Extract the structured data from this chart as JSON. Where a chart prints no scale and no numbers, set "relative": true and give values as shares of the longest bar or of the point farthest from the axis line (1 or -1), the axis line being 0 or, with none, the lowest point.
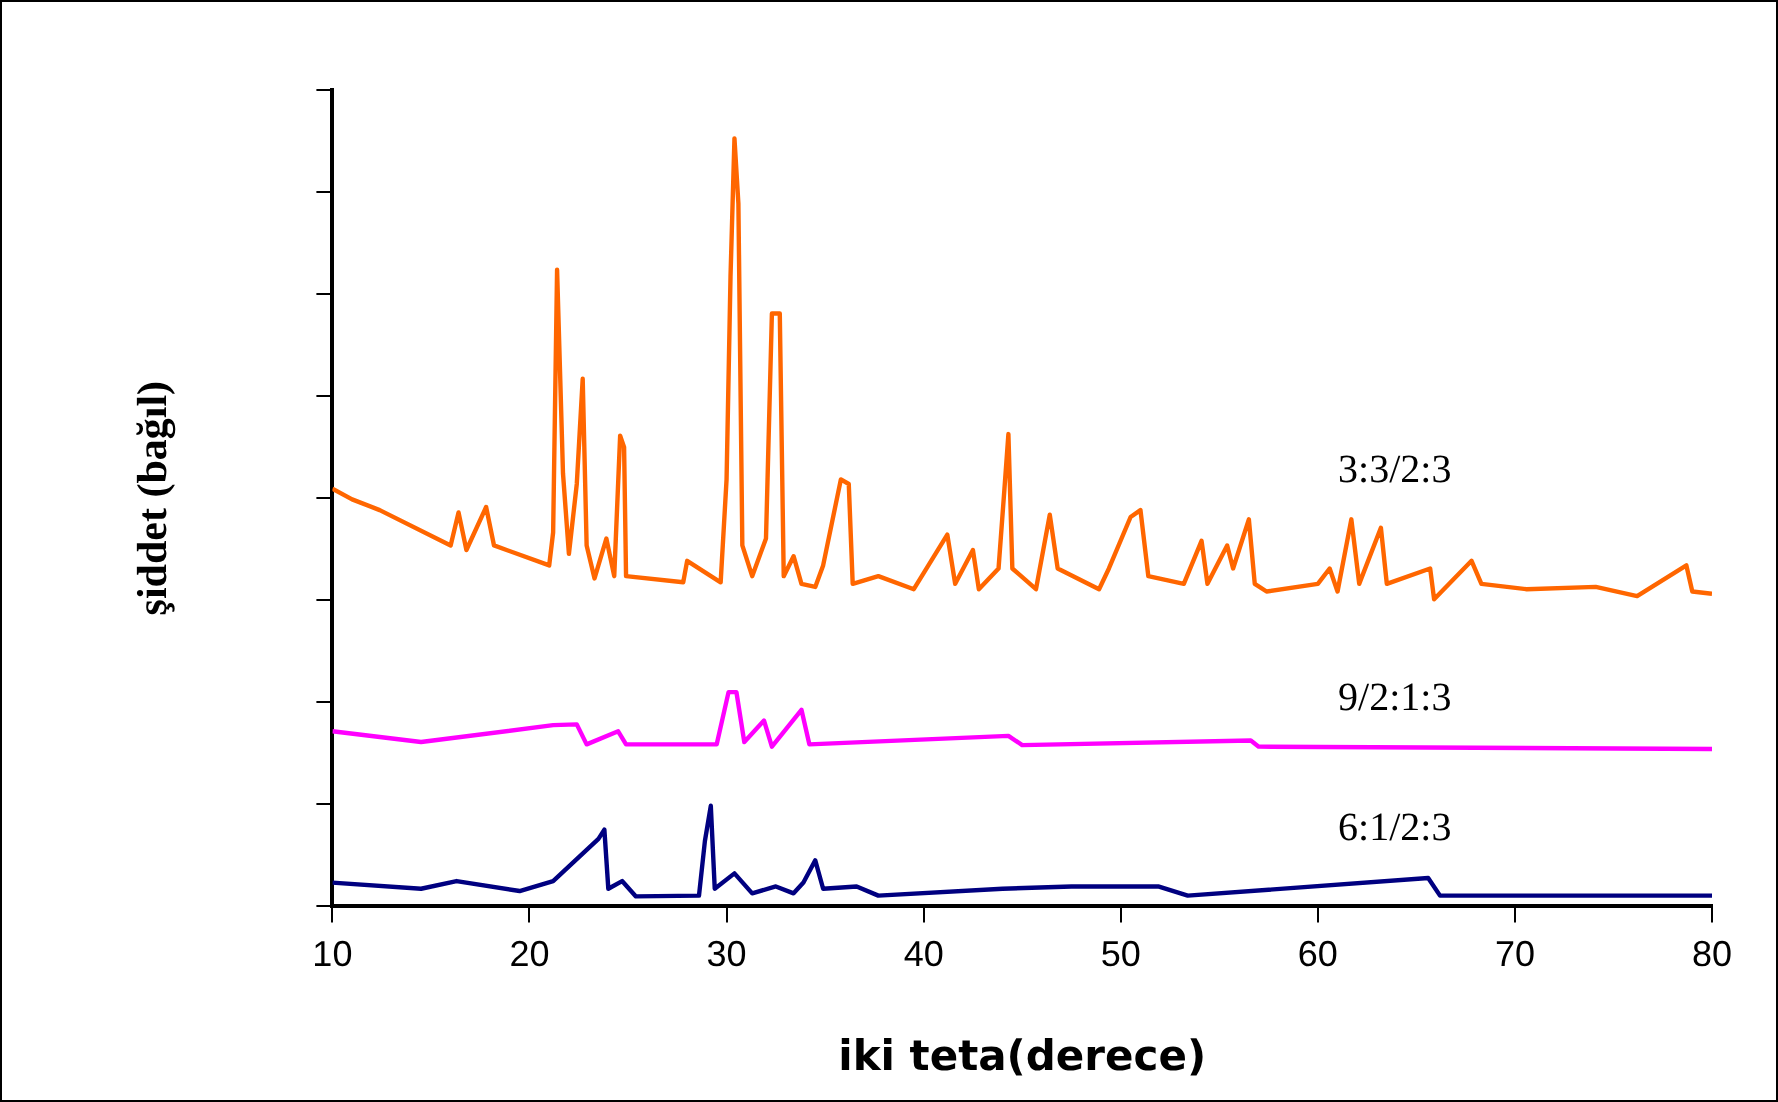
{
  "chart_data": {
    "type": "line",
    "xlabel": "iki teta(derece)",
    "ylabel": "şiddet (bağıl)",
    "relative": true,
    "xlim": [
      10,
      80
    ],
    "xticks": [
      10,
      20,
      30,
      40,
      50,
      60,
      70,
      80
    ],
    "tick_labels": "x",
    "grid": false,
    "legend": false,
    "marker": "none",
    "line_style": "solid",
    "series": [
      {
        "name": "3:3/2:3",
        "color": "#ff6600",
        "x": [
          10,
          11,
          12.4,
          16,
          16.4,
          16.8,
          17.8,
          18.2,
          21,
          21.2,
          21.4,
          21.7,
          22,
          22.4,
          22.7,
          22.9,
          23.3,
          23.9,
          24.3,
          24.6,
          24.8,
          24.9,
          27.8,
          28,
          29.7,
          30,
          30.2,
          30.4,
          30.6,
          30.8,
          31.3,
          32,
          32.3,
          32.7,
          32.9,
          33.4,
          33.8,
          34.5,
          34.9,
          35.8,
          36.2,
          36.4,
          37.7,
          39.5,
          41.2,
          41.6,
          42.5,
          42.8,
          43.8,
          44.1,
          44.3,
          44.5,
          45.7,
          46.4,
          46.8,
          48.9,
          49.4,
          50.5,
          51,
          51.4,
          53.2,
          54.1,
          54.4,
          55.4,
          55.7,
          56.5,
          56.8,
          57.4,
          60,
          60.6,
          61,
          61.7,
          62.1,
          63.2,
          63.5,
          65.7,
          65.9,
          67.8,
          68.3,
          70.6,
          74.1,
          76.2,
          78.7,
          79,
          80
        ],
        "values": [
          0.544,
          0.53,
          0.516,
          0.47,
          0.513,
          0.464,
          0.52,
          0.47,
          0.444,
          0.487,
          0.829,
          0.564,
          0.459,
          0.55,
          0.687,
          0.47,
          0.427,
          0.479,
          0.43,
          0.613,
          0.598,
          0.43,
          0.422,
          0.45,
          0.422,
          0.556,
          0.82,
          1,
          0.915,
          0.47,
          0.43,
          0.479,
          0.772,
          0.772,
          0.43,
          0.456,
          0.42,
          0.416,
          0.444,
          0.556,
          0.55,
          0.42,
          0.43,
          0.413,
          0.484,
          0.42,
          0.464,
          0.413,
          0.44,
          0.544,
          0.615,
          0.44,
          0.413,
          0.51,
          0.44,
          0.413,
          0.44,
          0.507,
          0.516,
          0.43,
          0.42,
          0.476,
          0.42,
          0.47,
          0.44,
          0.504,
          0.42,
          0.41,
          0.42,
          0.44,
          0.41,
          0.504,
          0.42,
          0.493,
          0.42,
          0.44,
          0.4,
          0.45,
          0.42,
          0.413,
          0.416,
          0.404,
          0.444,
          0.41,
          0.407
        ]
      },
      {
        "name": "9/2:1:3",
        "color": "#ff00ff",
        "x": [
          10,
          14.5,
          21.2,
          22.4,
          22.9,
          24.5,
          24.9,
          29.5,
          30.1,
          30.5,
          30.9,
          31.9,
          32.3,
          33.8,
          34.2,
          44.3,
          45,
          56.6,
          57,
          80
        ],
        "values": [
          0.228,
          0.214,
          0.236,
          0.237,
          0.211,
          0.228,
          0.211,
          0.211,
          0.279,
          0.279,
          0.214,
          0.242,
          0.208,
          0.256,
          0.211,
          0.222,
          0.21,
          0.216,
          0.208,
          0.205
        ]
      },
      {
        "name": "6:1/2:3",
        "color": "#000080",
        "x": [
          10,
          14.5,
          16.3,
          19.5,
          21.2,
          23.5,
          23.8,
          24,
          24.7,
          25.4,
          28.6,
          28.9,
          29.2,
          29.4,
          30.4,
          31.3,
          32.5,
          33.4,
          33.9,
          34.5,
          34.9,
          36.6,
          37.7,
          44,
          47.5,
          51.9,
          53.4,
          65.6,
          66.2,
          80
        ],
        "values": [
          0.031,
          0.023,
          0.033,
          0.02,
          0.033,
          0.088,
          0.1,
          0.023,
          0.033,
          0.013,
          0.014,
          0.085,
          0.131,
          0.023,
          0.043,
          0.017,
          0.026,
          0.017,
          0.031,
          0.06,
          0.023,
          0.026,
          0.014,
          0.023,
          0.026,
          0.026,
          0.014,
          0.037,
          0.014,
          0.014
        ]
      }
    ]
  }
}
